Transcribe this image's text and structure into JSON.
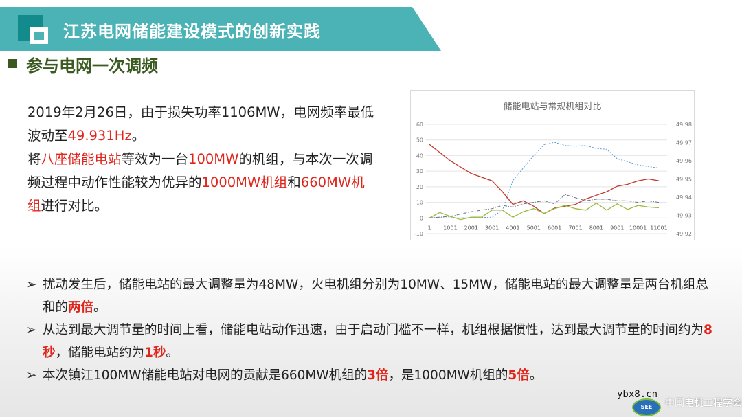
{
  "header": {
    "title": "江苏电网储能建设模式的创新实践",
    "accent_color": "#4bb3b5"
  },
  "section": {
    "title": "参与电网一次调频",
    "color": "#3b5a20"
  },
  "intro": {
    "p1": [
      "2019年2月26日，由于损失功率1106MW，电网频率最低波动至",
      "49.931Hz",
      "。"
    ],
    "p2": [
      "将",
      "八座储能电站",
      "等效为一台",
      "100MW",
      "的机组，与本次一次调频过程中动作性能较为优异的",
      "1000MW",
      "机组",
      "和",
      "660MW机组",
      "进行对比。"
    ]
  },
  "bullets": [
    {
      "arrow": "➢",
      "runs": [
        "扰动发生后，储能电站的最大调整量为48MW，火电机组分别为10MW、15MW，储能电站的最大调整量是两台机组总和的",
        "两倍",
        "。"
      ]
    },
    {
      "arrow": "➢",
      "runs": [
        "从达到最大调节量的时间上看，储能电站动作迅速，由于启动门槛不一样，机组根据惯性，达到最大调节量的时间约为",
        "8秒",
        "，储能电站约为",
        "1秒",
        "。"
      ]
    },
    {
      "arrow": "➢",
      "runs": [
        "本次镇江100MW储能电站对电网的贡献是660MW机组的",
        "3倍",
        "，是1000MW机组的",
        "5倍",
        "。"
      ]
    }
  ],
  "watermark": {
    "site": "ybx8.cn",
    "logo": "SEE",
    "org": "中国电机工程学会"
  },
  "chart_data": {
    "type": "line",
    "title": "储能电站与常规机组对比",
    "x_ticks": [
      "1",
      "1001",
      "2001",
      "3001",
      "4001",
      "5001",
      "6001",
      "7001",
      "8001",
      "9001",
      "10001",
      "11001"
    ],
    "xlim": [
      1,
      11001
    ],
    "y_left": {
      "lim": [
        -10,
        60
      ],
      "ticks": [
        "-10",
        "0",
        "10",
        "20",
        "30",
        "40",
        "50",
        "60"
      ]
    },
    "y_right": {
      "lim": [
        49.92,
        49.98
      ],
      "ticks": [
        "49.92",
        "49.93",
        "49.94",
        "49.95",
        "49.96",
        "49.97",
        "49.98"
      ]
    },
    "grid": true,
    "legend": "none",
    "series": [
      {
        "axis": "left",
        "color": "#5b9bd5",
        "style": "dotted",
        "points": [
          [
            1,
            0
          ],
          [
            1001,
            0
          ],
          [
            2001,
            0
          ],
          [
            3001,
            0.5
          ],
          [
            3501,
            5
          ],
          [
            4001,
            24
          ],
          [
            4501,
            32
          ],
          [
            5001,
            40
          ],
          [
            5501,
            47
          ],
          [
            6001,
            48.5
          ],
          [
            6501,
            46.5
          ],
          [
            7001,
            46
          ],
          [
            7501,
            46.5
          ],
          [
            8001,
            44.5
          ],
          [
            8501,
            44
          ],
          [
            9001,
            38
          ],
          [
            9501,
            36
          ],
          [
            10001,
            34
          ],
          [
            10501,
            33
          ],
          [
            11001,
            32
          ]
        ]
      },
      {
        "axis": "right",
        "color": "#c0392b",
        "style": "solid",
        "points": [
          [
            1,
            49.969
          ],
          [
            1001,
            49.96
          ],
          [
            2001,
            49.953
          ],
          [
            3001,
            49.949
          ],
          [
            3501,
            49.943
          ],
          [
            4001,
            49.936
          ],
          [
            4501,
            49.938
          ],
          [
            5001,
            49.935
          ],
          [
            5501,
            49.931
          ],
          [
            6001,
            49.934
          ],
          [
            6501,
            49.935
          ],
          [
            7001,
            49.936
          ],
          [
            7501,
            49.939
          ],
          [
            8001,
            49.941
          ],
          [
            8501,
            49.943
          ],
          [
            9001,
            49.946
          ],
          [
            9501,
            49.947
          ],
          [
            10001,
            49.949
          ],
          [
            10501,
            49.95
          ],
          [
            11001,
            49.949
          ]
        ]
      },
      {
        "axis": "left",
        "color": "#9bbb3b",
        "style": "solid",
        "points": [
          [
            1,
            0
          ],
          [
            500,
            3.5
          ],
          [
            1001,
            1
          ],
          [
            1501,
            -1
          ],
          [
            2001,
            0.5
          ],
          [
            2501,
            0.5
          ],
          [
            3001,
            5
          ],
          [
            3501,
            5
          ],
          [
            4001,
            0.5
          ],
          [
            4501,
            4
          ],
          [
            5001,
            6
          ],
          [
            5501,
            3
          ],
          [
            6001,
            6
          ],
          [
            6501,
            8
          ],
          [
            7001,
            6
          ],
          [
            7501,
            5
          ],
          [
            8001,
            9.5
          ],
          [
            8501,
            5
          ],
          [
            9001,
            9
          ],
          [
            9501,
            5.5
          ],
          [
            10001,
            8
          ],
          [
            10501,
            7
          ],
          [
            11001,
            6.5
          ]
        ]
      },
      {
        "axis": "left",
        "color": "#6a6f8a",
        "style": "dashdot",
        "points": [
          [
            1,
            0
          ],
          [
            1001,
            1
          ],
          [
            2001,
            4
          ],
          [
            3001,
            6
          ],
          [
            3501,
            8
          ],
          [
            4001,
            7
          ],
          [
            4501,
            9
          ],
          [
            5001,
            10
          ],
          [
            5501,
            11
          ],
          [
            6001,
            9
          ],
          [
            6501,
            15
          ],
          [
            7001,
            13
          ],
          [
            7501,
            11
          ],
          [
            8001,
            12
          ],
          [
            8501,
            12
          ],
          [
            9001,
            11
          ],
          [
            9501,
            11
          ],
          [
            10001,
            10
          ],
          [
            10501,
            11
          ],
          [
            11001,
            10
          ]
        ]
      }
    ]
  }
}
